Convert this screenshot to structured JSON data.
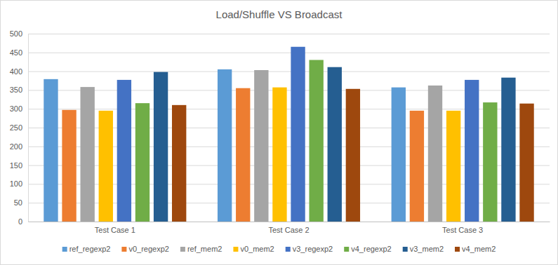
{
  "chart_data": {
    "type": "bar",
    "title": "Load/Shuffle VS Broadcast",
    "categories": [
      "Test Case 1",
      "Test Case 2",
      "Test Case 3"
    ],
    "series": [
      {
        "name": "ref_regexp2",
        "color": "#5b9bd5",
        "values": [
          379,
          405,
          357
        ]
      },
      {
        "name": "v0_regexp2",
        "color": "#ed7d31",
        "values": [
          297,
          355,
          295
        ]
      },
      {
        "name": "ref_mem2",
        "color": "#a5a5a5",
        "values": [
          358,
          403,
          362
        ]
      },
      {
        "name": "v0_mem2",
        "color": "#ffc000",
        "values": [
          295,
          357,
          295
        ]
      },
      {
        "name": "v3_regexp2",
        "color": "#4472c4",
        "values": [
          377,
          465,
          377
        ]
      },
      {
        "name": "v4_regexp2",
        "color": "#70ad47",
        "values": [
          315,
          430,
          317
        ]
      },
      {
        "name": "v3_mem2",
        "color": "#255e91",
        "values": [
          398,
          411,
          383
        ]
      },
      {
        "name": "v4_mem2",
        "color": "#9e480e",
        "values": [
          310,
          353,
          314
        ]
      }
    ],
    "ylim": [
      0,
      500
    ],
    "yticks": [
      0,
      50,
      100,
      150,
      200,
      250,
      300,
      350,
      400,
      450,
      500
    ],
    "grid": true,
    "legend": "bottom"
  }
}
